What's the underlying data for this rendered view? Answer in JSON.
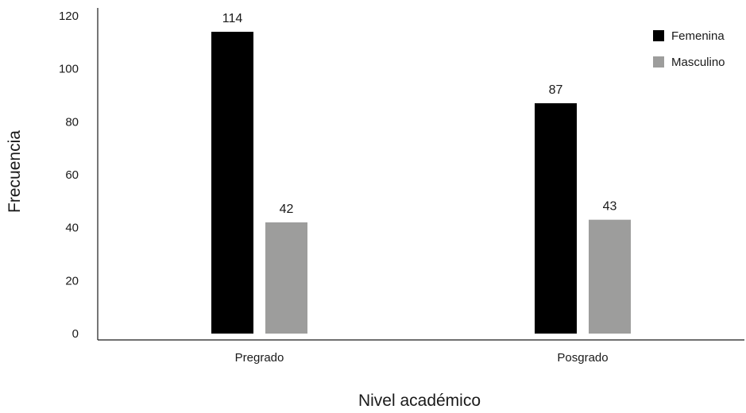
{
  "chart_data": {
    "type": "bar",
    "categories": [
      "Pregrado",
      "Posgrado"
    ],
    "series": [
      {
        "name": "Femenina",
        "values": [
          114,
          87
        ],
        "color": "#000000"
      },
      {
        "name": "Masculino",
        "values": [
          42,
          43
        ],
        "color": "#9d9d9c"
      }
    ],
    "xlabel": "Nivel académico",
    "ylabel": "Frecuencia",
    "ylim": [
      0,
      120
    ],
    "yticks": [
      0,
      20,
      40,
      60,
      80,
      100,
      120
    ],
    "legend": "top-right",
    "grid": false,
    "data_labels": true
  }
}
